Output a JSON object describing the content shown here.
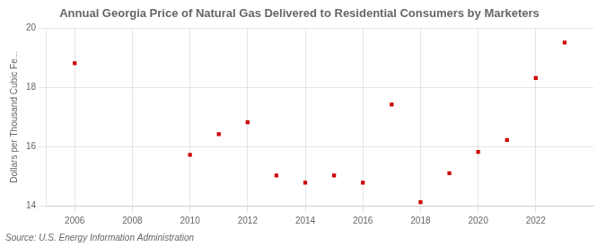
{
  "chart_data": {
    "type": "scatter",
    "title": "Annual Georgia Price of Natural Gas Delivered to Residential Consumers by Marketers",
    "ylabel": "Dollars per Thousand Cubic Fe...",
    "source": "Source: U.S. Energy Information Administration",
    "x": [
      2006,
      2010,
      2011,
      2012,
      2013,
      2014,
      2015,
      2016,
      2017,
      2018,
      2019,
      2020,
      2021,
      2022,
      2023
    ],
    "values": [
      18.82,
      15.72,
      16.42,
      16.82,
      15.02,
      14.78,
      15.02,
      14.78,
      17.42,
      14.12,
      15.1,
      15.82,
      16.22,
      18.32,
      19.52
    ],
    "color": "#cc0000",
    "marker": "square",
    "xlim": [
      2005,
      2024
    ],
    "xticks": [
      2006,
      2008,
      2010,
      2012,
      2014,
      2016,
      2018,
      2020,
      2022
    ],
    "ylim": [
      14,
      20
    ],
    "yticks": [
      14,
      16,
      18,
      20
    ],
    "grid": true
  }
}
